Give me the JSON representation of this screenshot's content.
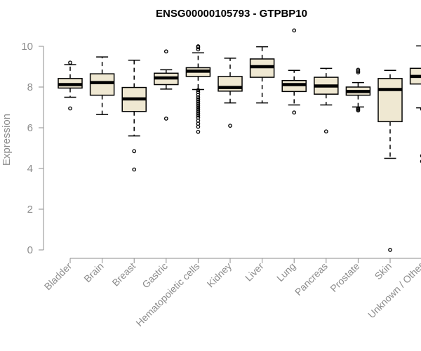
{
  "chart_data": {
    "type": "boxplot",
    "title": "ENSG00000105793 - GTPBP10",
    "xlabel": "",
    "ylabel": "Expression",
    "ylim": [
      0,
      10
    ],
    "yticks": [
      0,
      2,
      4,
      6,
      8,
      10
    ],
    "grid": false,
    "colors": {
      "box_fill": "#efe8d2",
      "stroke": "#000000",
      "axis": "#8c8c8c"
    },
    "categories": [
      "Bladder",
      "Brain",
      "Breast",
      "Gastric",
      "Hematopoietic cells",
      "Kidney",
      "Liver",
      "Lung",
      "Pancreas",
      "Prostate",
      "Skin",
      "Unknown / Other"
    ],
    "boxes": [
      {
        "name": "Bladder",
        "whisker_low": 7.5,
        "q1": 7.95,
        "median": 8.12,
        "q3": 8.42,
        "whisker_high": 9.1,
        "outliers": [
          6.95,
          9.2
        ]
      },
      {
        "name": "Brain",
        "whisker_low": 6.65,
        "q1": 7.6,
        "median": 8.22,
        "q3": 8.65,
        "whisker_high": 9.48,
        "outliers": []
      },
      {
        "name": "Breast",
        "whisker_low": 5.6,
        "q1": 6.8,
        "median": 7.42,
        "q3": 7.98,
        "whisker_high": 9.32,
        "outliers": [
          4.85,
          3.95
        ]
      },
      {
        "name": "Gastric",
        "whisker_low": 7.9,
        "q1": 8.12,
        "median": 8.45,
        "q3": 8.68,
        "whisker_high": 8.85,
        "outliers": [
          9.75,
          6.45
        ]
      },
      {
        "name": "Hematopoietic cells",
        "whisker_low": 7.88,
        "q1": 8.52,
        "median": 8.78,
        "q3": 8.95,
        "whisker_high": 9.68,
        "outliers": [
          9.85,
          9.95,
          10.0,
          7.85,
          7.75,
          7.62,
          7.5,
          7.4,
          7.3,
          7.2,
          7.1,
          7.0,
          6.9,
          6.8,
          6.7,
          6.6,
          6.5,
          6.35,
          6.2,
          6.05,
          5.8
        ]
      },
      {
        "name": "Kidney",
        "whisker_low": 7.22,
        "q1": 7.8,
        "median": 7.98,
        "q3": 8.52,
        "whisker_high": 9.42,
        "outliers": [
          6.1
        ]
      },
      {
        "name": "Liver",
        "whisker_low": 7.22,
        "q1": 8.48,
        "median": 9.0,
        "q3": 9.38,
        "whisker_high": 9.98,
        "outliers": []
      },
      {
        "name": "Lung",
        "whisker_low": 7.12,
        "q1": 7.78,
        "median": 8.12,
        "q3": 8.32,
        "whisker_high": 8.82,
        "outliers": [
          10.78,
          6.75
        ]
      },
      {
        "name": "Pancreas",
        "whisker_low": 7.12,
        "q1": 7.65,
        "median": 8.05,
        "q3": 8.48,
        "whisker_high": 8.92,
        "outliers": [
          5.82
        ]
      },
      {
        "name": "Prostate",
        "whisker_low": 7.02,
        "q1": 7.6,
        "median": 7.78,
        "q3": 8.0,
        "whisker_high": 8.22,
        "outliers": [
          8.72,
          8.78,
          8.85,
          6.85,
          6.9,
          6.95
        ]
      },
      {
        "name": "Skin",
        "whisker_low": 4.5,
        "q1": 6.3,
        "median": 7.88,
        "q3": 8.42,
        "whisker_high": 8.82,
        "outliers": [
          0.0
        ]
      },
      {
        "name": "Unknown / Other",
        "whisker_low": 6.98,
        "q1": 8.15,
        "median": 8.52,
        "q3": 8.92,
        "whisker_high": 10.02,
        "outliers": [
          6.92,
          4.62,
          4.35
        ]
      }
    ]
  }
}
